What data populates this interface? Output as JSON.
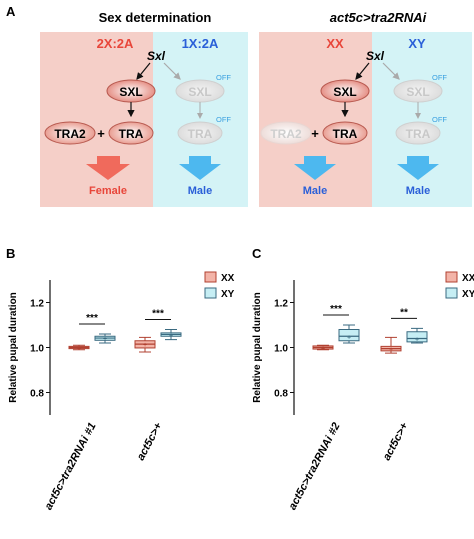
{
  "panels": {
    "a": {
      "letter": "A",
      "left": {
        "title": "Sex determination",
        "col_xx": {
          "header": "2X:2A",
          "sxl_gene": "Sxl",
          "sxl": "SXL",
          "tra2": "TRA2",
          "plus": "+",
          "tra": "TRA",
          "outcome": "Female"
        },
        "col_xy": {
          "header": "1X:2A",
          "sxl": "SXL",
          "tra": "TRA",
          "off1": "OFF",
          "off2": "OFF",
          "outcome": "Male"
        }
      },
      "right": {
        "title": "act5c>tra2RNAi",
        "col_xx": {
          "header": "XX",
          "sxl_gene": "Sxl",
          "sxl": "SXL",
          "tra2": "TRA2",
          "plus": "+",
          "tra": "TRA",
          "outcome": "Male"
        },
        "col_xy": {
          "header": "XY",
          "sxl": "SXL",
          "tra": "TRA",
          "off1": "OFF",
          "off2": "OFF",
          "outcome": "Male"
        }
      },
      "colors": {
        "xx_bg": "#f5cfc8",
        "xy_bg": "#d4f3f6",
        "xx_accent": "#e8463a",
        "xy_accent": "#2a5fd8",
        "arrow_blue": "#4db8ef",
        "arrow_red": "#f06a5c",
        "off": "#3aa0e0"
      }
    },
    "b": {
      "letter": "B",
      "legend": [
        "XX",
        "XY"
      ]
    },
    "c": {
      "letter": "C",
      "legend": [
        "XX",
        "XY"
      ]
    }
  },
  "chart_data": [
    {
      "type": "box",
      "panel": "B",
      "ylabel": "Relative pupal duration",
      "ylim": [
        0.7,
        1.3
      ],
      "yticks": [
        0.8,
        1.0,
        1.2
      ],
      "categories": [
        "act5c>tra2RNAi #1",
        "act5c>+"
      ],
      "series": [
        {
          "name": "XX",
          "color": "#f3b4a8",
          "stroke": "#b04030",
          "boxes": [
            {
              "min": 0.99,
              "q1": 0.995,
              "median": 1.0,
              "q3": 1.005,
              "max": 1.01
            },
            {
              "min": 0.98,
              "q1": 0.998,
              "median": 1.015,
              "q3": 1.03,
              "max": 1.045
            }
          ]
        },
        {
          "name": "XY",
          "color": "#c6eef4",
          "stroke": "#3a6a80",
          "boxes": [
            {
              "min": 1.02,
              "q1": 1.032,
              "median": 1.042,
              "q3": 1.05,
              "max": 1.06
            },
            {
              "min": 1.035,
              "q1": 1.05,
              "median": 1.058,
              "q3": 1.065,
              "max": 1.08
            }
          ]
        }
      ],
      "significance": [
        "***",
        "***"
      ]
    },
    {
      "type": "box",
      "panel": "C",
      "ylabel": "Relative pupal duration",
      "ylim": [
        0.7,
        1.3
      ],
      "yticks": [
        0.8,
        1.0,
        1.2
      ],
      "categories": [
        "act5c>tra2RNAi #2",
        "act5c>+"
      ],
      "series": [
        {
          "name": "XX",
          "color": "#f3b4a8",
          "stroke": "#b04030",
          "boxes": [
            {
              "min": 0.99,
              "q1": 0.993,
              "median": 1.0,
              "q3": 1.007,
              "max": 1.01
            },
            {
              "min": 0.975,
              "q1": 0.985,
              "median": 0.995,
              "q3": 1.005,
              "max": 1.045
            }
          ]
        },
        {
          "name": "XY",
          "color": "#c6eef4",
          "stroke": "#3a6a80",
          "boxes": [
            {
              "min": 1.02,
              "q1": 1.03,
              "median": 1.05,
              "q3": 1.08,
              "max": 1.1
            },
            {
              "min": 1.02,
              "q1": 1.025,
              "median": 1.04,
              "q3": 1.07,
              "max": 1.085
            }
          ]
        }
      ],
      "significance": [
        "***",
        "**"
      ]
    }
  ]
}
